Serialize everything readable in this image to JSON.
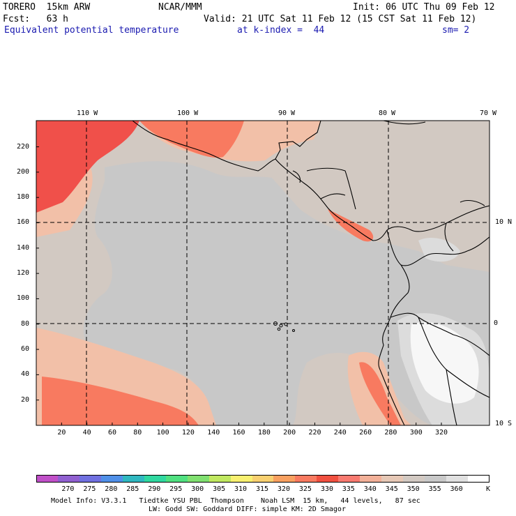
{
  "header": {
    "model": "TORERO  15km ARW",
    "org": "NCAR/MMM",
    "init": "Init: 06 UTC Thu 09 Feb 12",
    "fcst": "Fcst:   63 h",
    "valid": "Valid: 21 UTC Sat 11 Feb 12 (15 CST Sat 11 Feb 12)",
    "field": "Equivalent potential temperature",
    "level": "at k-index =  44",
    "smooth": "sm= 2"
  },
  "map": {
    "top_lon_labels": [
      "110 W",
      "100 W",
      "90 W",
      "80 W",
      "70 W"
    ],
    "right_lat_labels": [
      "10 N",
      "0",
      "10 S"
    ],
    "left_y_ticks": [
      "220",
      "200",
      "180",
      "160",
      "140",
      "120",
      "100",
      "80",
      "60",
      "40",
      "20"
    ],
    "bottom_x_ticks": [
      "20",
      "40",
      "60",
      "80",
      "100",
      "120",
      "140",
      "160",
      "180",
      "200",
      "220",
      "240",
      "260",
      "280",
      "300",
      "320"
    ],
    "colors": {
      "c330": "#f0504a",
      "c325": "#f87a60",
      "c340": "#f2c0a8",
      "c345": "#d2c9c2",
      "c350": "#c8c8c8",
      "c355": "#dcdcdc",
      "c360": "#f7f7f7",
      "land": "#000000",
      "grid": "#000000"
    }
  },
  "colorbar": {
    "unit": "K",
    "labels": [
      "270",
      "275",
      "280",
      "285",
      "290",
      "295",
      "300",
      "305",
      "310",
      "315",
      "320",
      "325",
      "330",
      "335",
      "340",
      "345",
      "350",
      "355",
      "360"
    ],
    "colors": [
      "#c050c8",
      "#9060d0",
      "#7070e0",
      "#5090e8",
      "#30b8c0",
      "#30d8a0",
      "#50e080",
      "#80e070",
      "#c0e860",
      "#f8f070",
      "#f8d070",
      "#f8a060",
      "#f87a60",
      "#f05040",
      "#f87a70",
      "#f2b098",
      "#e6c8b6",
      "#d2c9c2",
      "#c8c8c8",
      "#e0e0e0",
      "#ffffff"
    ]
  },
  "footer": {
    "line1": "Model Info: V3.3.1   Tiedtke YSU PBL  Thompson    Noah LSM  15 km,   44 levels,   87 sec",
    "line2": "LW: Godd SW: Goddard DIFF: simple KM: 2D Smagor"
  }
}
